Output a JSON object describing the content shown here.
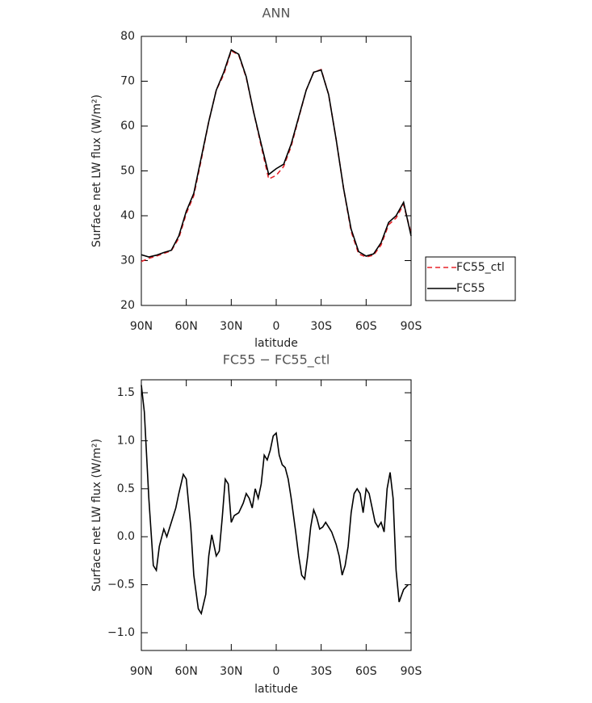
{
  "chart_data": [
    {
      "type": "line",
      "title": "ANN",
      "xlabel": "latitude",
      "ylabel": "Surface net LW flux (W/m²)",
      "x": [
        90,
        85,
        80,
        75,
        70,
        65,
        60,
        55,
        50,
        45,
        40,
        35,
        30,
        25,
        20,
        15,
        10,
        5,
        0,
        -5,
        -10,
        -15,
        -20,
        -25,
        -30,
        -35,
        -40,
        -45,
        -50,
        -55,
        -60,
        -65,
        -70,
        -75,
        -80,
        -85,
        -90
      ],
      "series": [
        {
          "name": "FC55_ctl",
          "color": "#e8232a",
          "line_style": "dashed",
          "values": [
            29.8,
            30.5,
            31,
            31.6,
            32.2,
            35,
            40.5,
            44.5,
            52.5,
            61,
            68,
            71.5,
            76.8,
            75.8,
            70.8,
            63,
            55.5,
            48.2,
            49,
            51,
            55.5,
            61.8,
            68,
            72,
            72.6,
            67,
            57,
            46,
            36.5,
            31.5,
            30.8,
            31.2,
            33.5,
            38,
            39.5,
            42.5,
            36
          ]
        },
        {
          "name": "FC55",
          "color": "#000000",
          "line_style": "solid",
          "values": [
            31.3,
            30.8,
            31.2,
            31.8,
            32.3,
            35.5,
            41,
            45,
            53,
            61,
            68,
            72,
            77,
            76,
            71,
            63,
            56,
            49.2,
            50.5,
            51.5,
            56,
            62,
            68,
            72,
            72.5,
            67,
            57,
            46,
            37,
            32,
            31,
            31.5,
            34,
            38.5,
            40,
            43,
            35.5
          ]
        }
      ],
      "xlim": [
        90,
        -90
      ],
      "xticks": [
        {
          "value": 90,
          "label": "90N"
        },
        {
          "value": 60,
          "label": "60N"
        },
        {
          "value": 30,
          "label": "30N"
        },
        0,
        {
          "value": -30,
          "label": "30S"
        },
        {
          "value": -60,
          "label": "60S"
        },
        {
          "value": -90,
          "label": "90S"
        }
      ],
      "ylim": [
        20,
        80
      ],
      "yticks": [
        20,
        30,
        40,
        50,
        60,
        70,
        80
      ],
      "legend": "right"
    },
    {
      "type": "line",
      "title": "FC55 − FC55_ctl",
      "xlabel": "latitude",
      "ylabel": "Surface net LW flux (W/m²)",
      "x": [
        90,
        88,
        85,
        82,
        80,
        78,
        75,
        73,
        71,
        69,
        67,
        65,
        62,
        60,
        57,
        55,
        52,
        50,
        47,
        45,
        43,
        40,
        38,
        36,
        34,
        32,
        30,
        28,
        25,
        22,
        20,
        18,
        16,
        14,
        12,
        10,
        8,
        6,
        4,
        2,
        0,
        -2,
        -4,
        -6,
        -8,
        -10,
        -13,
        -15,
        -17,
        -19,
        -21,
        -23,
        -25,
        -27,
        -29,
        -31,
        -33,
        -35,
        -37,
        -40,
        -42,
        -44,
        -46,
        -48,
        -50,
        -52,
        -54,
        -56,
        -58,
        -60,
        -62,
        -64,
        -66,
        -68,
        -70,
        -72,
        -74,
        -76,
        -78,
        -80,
        -82,
        -85,
        -88
      ],
      "series": [
        {
          "name": "FC55 − FC55_ctl",
          "color": "#000000",
          "line_style": "solid",
          "values": [
            1.58,
            1.3,
            0.4,
            -0.3,
            -0.35,
            -0.1,
            0.08,
            0.0,
            0.1,
            0.2,
            0.3,
            0.45,
            0.65,
            0.6,
            0.1,
            -0.4,
            -0.75,
            -0.8,
            -0.6,
            -0.2,
            0.02,
            -0.2,
            -0.15,
            0.2,
            0.6,
            0.55,
            0.15,
            0.22,
            0.25,
            0.35,
            0.45,
            0.4,
            0.3,
            0.5,
            0.4,
            0.55,
            0.85,
            0.8,
            0.9,
            1.05,
            1.08,
            0.85,
            0.75,
            0.72,
            0.6,
            0.4,
            0.05,
            -0.2,
            -0.4,
            -0.44,
            -0.2,
            0.1,
            0.28,
            0.2,
            0.08,
            0.1,
            0.15,
            0.1,
            0.05,
            -0.08,
            -0.2,
            -0.4,
            -0.3,
            -0.1,
            0.25,
            0.45,
            0.5,
            0.45,
            0.25,
            0.5,
            0.45,
            0.3,
            0.15,
            0.1,
            0.15,
            0.05,
            0.5,
            0.67,
            0.4,
            -0.35,
            -0.68,
            -0.55,
            -0.5
          ]
        }
      ],
      "xlim": [
        90,
        -90
      ],
      "xticks": [
        {
          "value": 90,
          "label": "90N"
        },
        {
          "value": 60,
          "label": "60N"
        },
        {
          "value": 30,
          "label": "30N"
        },
        0,
        {
          "value": -30,
          "label": "30S"
        },
        {
          "value": -60,
          "label": "60S"
        },
        {
          "value": -90,
          "label": "90S"
        }
      ],
      "ylim": [
        -1.185,
        1.635
      ],
      "yticks": [
        {
          "value": -1,
          "label": "−1.0"
        },
        {
          "value": -0.5,
          "label": "−0.5"
        },
        {
          "value": 0,
          "label": "0.0"
        },
        {
          "value": 0.5,
          "label": "0.5"
        },
        {
          "value": 1,
          "label": "1.0"
        },
        1.5
      ]
    }
  ]
}
